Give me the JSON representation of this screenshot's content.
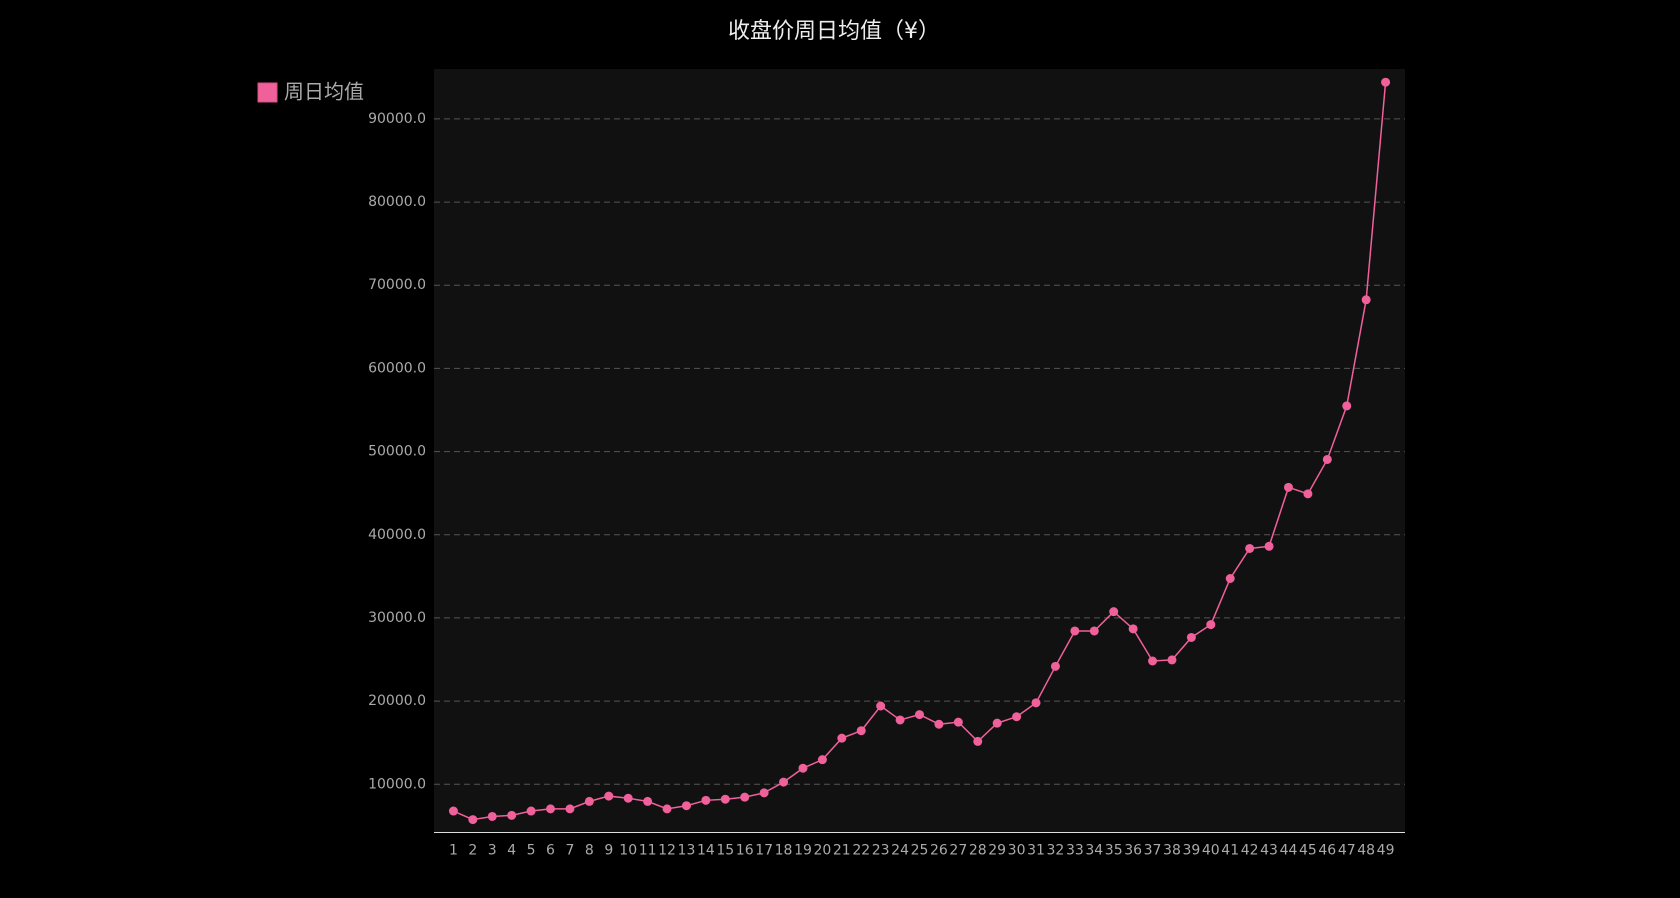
{
  "chart_data": {
    "type": "line",
    "title": "收盘价周日均值（¥）",
    "categories": [
      "1",
      "2",
      "3",
      "4",
      "5",
      "6",
      "7",
      "8",
      "9",
      "10",
      "11",
      "12",
      "13",
      "14",
      "15",
      "16",
      "17",
      "18",
      "19",
      "20",
      "21",
      "22",
      "23",
      "24",
      "25",
      "26",
      "27",
      "28",
      "29",
      "30",
      "31",
      "32",
      "33",
      "34",
      "35",
      "36",
      "37",
      "38",
      "39",
      "40",
      "41",
      "42",
      "43",
      "44",
      "45",
      "46",
      "47",
      "48",
      "49"
    ],
    "series": [
      {
        "name": "周日均值",
        "color": "#f0609a",
        "values": [
          6780,
          5750,
          6130,
          6260,
          6780,
          7040,
          7040,
          7940,
          8580,
          8320,
          7940,
          7040,
          7420,
          8070,
          8200,
          8450,
          8970,
          10260,
          11930,
          12960,
          15540,
          16440,
          19410,
          17730,
          18380,
          17220,
          17470,
          15150,
          17350,
          18120,
          19790,
          24180,
          28430,
          28430,
          30750,
          28690,
          24820,
          24950,
          27650,
          29200,
          34740,
          38350,
          38610,
          45700,
          44920,
          49050,
          55490,
          68250,
          94410
        ]
      }
    ],
    "ylim": [
      4200,
      96000
    ],
    "yticks": [
      {
        "value": 10000,
        "label": "10000.0"
      },
      {
        "value": 20000,
        "label": "20000.0"
      },
      {
        "value": 30000,
        "label": "30000.0"
      },
      {
        "value": 40000,
        "label": "40000.0"
      },
      {
        "value": 50000,
        "label": "50000.0"
      },
      {
        "value": 60000,
        "label": "60000.0"
      },
      {
        "value": 70000,
        "label": "70000.0"
      },
      {
        "value": 80000,
        "label": "80000.0"
      },
      {
        "value": 90000,
        "label": "90000.0"
      }
    ],
    "grid": true,
    "legend": "top-left"
  }
}
